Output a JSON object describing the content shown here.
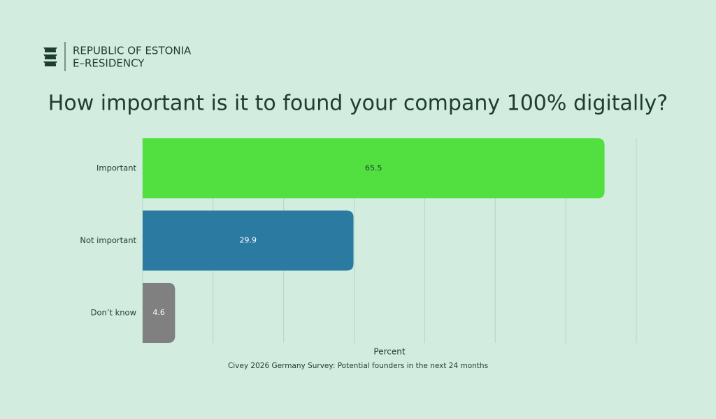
{
  "header": {
    "line1": "REPUBLIC OF ESTONIA",
    "line2": "E–RESIDENCY"
  },
  "chart_data": {
    "type": "hbar",
    "title": "How important is it to found your company 100% digitally?",
    "categories": [
      "Important",
      "Not important",
      "Don’t know"
    ],
    "values": [
      65.5,
      29.9,
      4.6
    ],
    "colors": [
      "#52e040",
      "#2a7aa1",
      "#808080"
    ],
    "xlabel": "Percent",
    "caption": "Civey 2026 Germany Survey: Potential founders in the next 24 months",
    "xlim": [
      0,
      70
    ],
    "xticks": [
      0,
      10,
      20,
      30,
      40,
      50,
      60,
      70
    ],
    "grid": true
  }
}
